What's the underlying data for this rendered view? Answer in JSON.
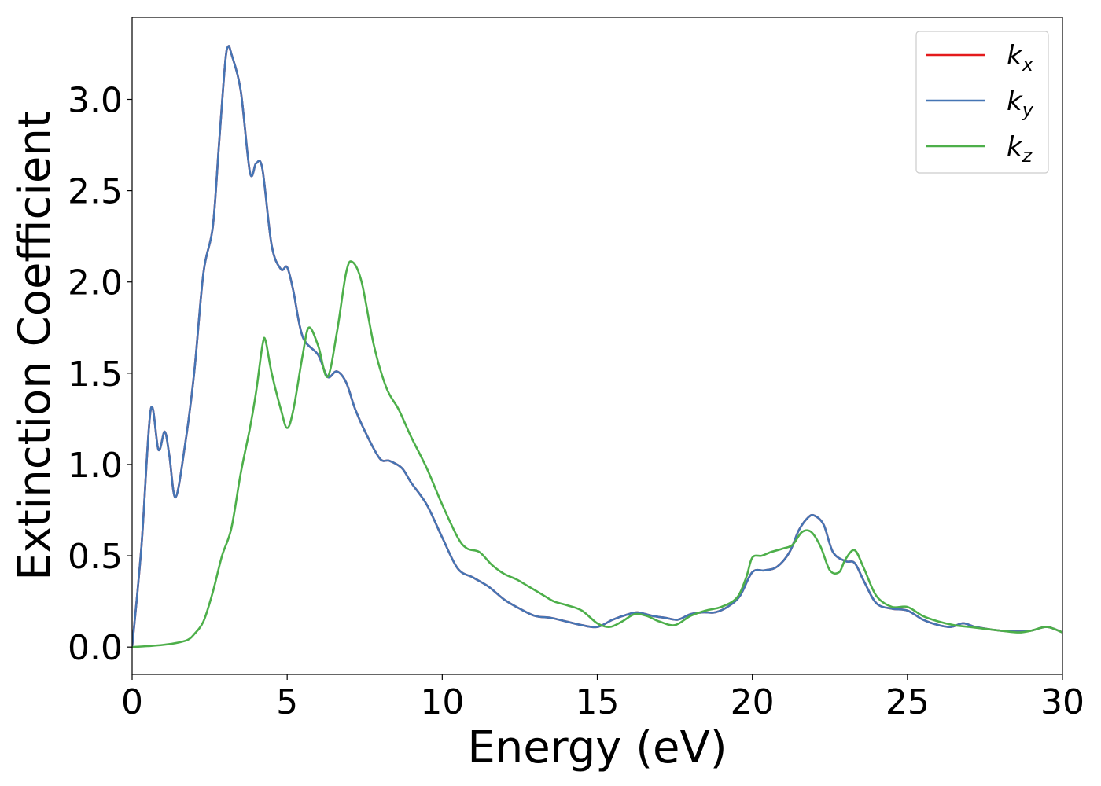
{
  "chart_data": {
    "type": "line",
    "xlabel": "Energy (eV)",
    "ylabel": "Extinction Coefficient",
    "xlim": [
      0,
      30
    ],
    "ylim": [
      -0.15,
      3.45
    ],
    "xticks": [
      0,
      5,
      10,
      15,
      20,
      25,
      30
    ],
    "xtick_labels": [
      "0",
      "5",
      "10",
      "15",
      "20",
      "25",
      "30"
    ],
    "yticks": [
      0.0,
      0.5,
      1.0,
      1.5,
      2.0,
      2.5,
      3.0
    ],
    "ytick_labels": [
      "0.0",
      "0.5",
      "1.0",
      "1.5",
      "2.0",
      "2.5",
      "3.0"
    ],
    "grid": false,
    "legend_position": "top-right",
    "series": [
      {
        "name": "k_x",
        "legend_base": "k",
        "legend_sub": "x",
        "color": "#e41a1c",
        "x": [
          0,
          0.3,
          0.6,
          0.85,
          1.05,
          1.2,
          1.4,
          1.7,
          2.0,
          2.3,
          2.6,
          2.8,
          3.0,
          3.1,
          3.2,
          3.5,
          3.8,
          4.0,
          4.2,
          4.5,
          4.8,
          5.0,
          5.2,
          5.5,
          6.0,
          6.3,
          6.6,
          6.9,
          7.2,
          7.6,
          8.0,
          8.3,
          8.7,
          9.0,
          9.5,
          10.0,
          10.5,
          11.0,
          11.5,
          12.0,
          12.5,
          13.0,
          13.5,
          14.0,
          14.5,
          15.0,
          15.5,
          16.0,
          16.3,
          16.8,
          17.2,
          17.6,
          18.0,
          18.4,
          18.8,
          19.2,
          19.6,
          20.0,
          20.4,
          20.8,
          21.2,
          21.5,
          21.8,
          22.0,
          22.3,
          22.6,
          23.0,
          23.3,
          23.6,
          24.0,
          24.5,
          25.0,
          25.5,
          26.0,
          26.4,
          26.8,
          27.2,
          28.0,
          28.6,
          29.0,
          29.5,
          30.0
        ],
        "y": [
          0.0,
          0.55,
          1.3,
          1.08,
          1.18,
          1.05,
          0.82,
          1.1,
          1.5,
          2.05,
          2.3,
          2.75,
          3.2,
          3.29,
          3.25,
          3.05,
          2.6,
          2.65,
          2.62,
          2.2,
          2.07,
          2.08,
          1.95,
          1.7,
          1.6,
          1.48,
          1.51,
          1.45,
          1.3,
          1.15,
          1.03,
          1.02,
          0.98,
          0.9,
          0.78,
          0.6,
          0.43,
          0.38,
          0.33,
          0.26,
          0.21,
          0.17,
          0.16,
          0.14,
          0.12,
          0.11,
          0.15,
          0.18,
          0.19,
          0.17,
          0.16,
          0.15,
          0.18,
          0.19,
          0.19,
          0.22,
          0.28,
          0.41,
          0.42,
          0.44,
          0.52,
          0.64,
          0.71,
          0.72,
          0.67,
          0.52,
          0.47,
          0.46,
          0.36,
          0.24,
          0.21,
          0.2,
          0.15,
          0.12,
          0.11,
          0.13,
          0.11,
          0.09,
          0.085,
          0.09,
          0.11,
          0.08
        ]
      },
      {
        "name": "k_y",
        "legend_base": "k",
        "legend_sub": "y",
        "color": "#4575b4",
        "x": [
          0,
          0.3,
          0.6,
          0.85,
          1.05,
          1.2,
          1.4,
          1.7,
          2.0,
          2.3,
          2.6,
          2.8,
          3.0,
          3.1,
          3.2,
          3.5,
          3.8,
          4.0,
          4.2,
          4.5,
          4.8,
          5.0,
          5.2,
          5.5,
          6.0,
          6.3,
          6.6,
          6.9,
          7.2,
          7.6,
          8.0,
          8.3,
          8.7,
          9.0,
          9.5,
          10.0,
          10.5,
          11.0,
          11.5,
          12.0,
          12.5,
          13.0,
          13.5,
          14.0,
          14.5,
          15.0,
          15.5,
          16.0,
          16.3,
          16.8,
          17.2,
          17.6,
          18.0,
          18.4,
          18.8,
          19.2,
          19.6,
          20.0,
          20.4,
          20.8,
          21.2,
          21.5,
          21.8,
          22.0,
          22.3,
          22.6,
          23.0,
          23.3,
          23.6,
          24.0,
          24.5,
          25.0,
          25.5,
          26.0,
          26.4,
          26.8,
          27.2,
          28.0,
          28.6,
          29.0,
          29.5,
          30.0
        ],
        "y": [
          0.0,
          0.55,
          1.3,
          1.08,
          1.18,
          1.05,
          0.82,
          1.1,
          1.5,
          2.05,
          2.3,
          2.75,
          3.2,
          3.29,
          3.25,
          3.05,
          2.6,
          2.65,
          2.62,
          2.2,
          2.07,
          2.08,
          1.95,
          1.7,
          1.6,
          1.48,
          1.51,
          1.45,
          1.3,
          1.15,
          1.03,
          1.02,
          0.98,
          0.9,
          0.78,
          0.6,
          0.43,
          0.38,
          0.33,
          0.26,
          0.21,
          0.17,
          0.16,
          0.14,
          0.12,
          0.11,
          0.15,
          0.18,
          0.19,
          0.17,
          0.16,
          0.15,
          0.18,
          0.19,
          0.19,
          0.22,
          0.28,
          0.41,
          0.42,
          0.44,
          0.52,
          0.64,
          0.71,
          0.72,
          0.67,
          0.52,
          0.47,
          0.46,
          0.36,
          0.24,
          0.21,
          0.2,
          0.15,
          0.12,
          0.11,
          0.13,
          0.11,
          0.09,
          0.085,
          0.09,
          0.11,
          0.08
        ]
      },
      {
        "name": "k_z",
        "legend_base": "k",
        "legend_sub": "z",
        "color": "#4daf4a",
        "x": [
          0,
          0.5,
          1.0,
          1.5,
          1.8,
          2.0,
          2.3,
          2.6,
          2.9,
          3.2,
          3.5,
          3.8,
          4.0,
          4.2,
          4.3,
          4.5,
          4.8,
          5.0,
          5.2,
          5.5,
          5.7,
          6.0,
          6.3,
          6.6,
          6.9,
          7.1,
          7.4,
          7.8,
          8.2,
          8.6,
          9.0,
          9.5,
          10.0,
          10.5,
          10.8,
          11.2,
          11.6,
          12.0,
          12.4,
          12.8,
          13.2,
          13.6,
          14.0,
          14.5,
          15.0,
          15.4,
          15.8,
          16.2,
          16.6,
          17.0,
          17.5,
          18.0,
          18.5,
          19.0,
          19.5,
          19.8,
          20.0,
          20.3,
          20.6,
          21.0,
          21.3,
          21.6,
          21.9,
          22.2,
          22.5,
          22.8,
          23.0,
          23.3,
          23.6,
          24.0,
          24.5,
          25.0,
          25.5,
          26.0,
          26.5,
          27.0,
          28.0,
          28.6,
          29.0,
          29.5,
          30.0
        ],
        "y": [
          0.0,
          0.005,
          0.012,
          0.025,
          0.04,
          0.07,
          0.14,
          0.3,
          0.5,
          0.65,
          0.95,
          1.2,
          1.4,
          1.65,
          1.68,
          1.5,
          1.3,
          1.2,
          1.3,
          1.6,
          1.75,
          1.65,
          1.48,
          1.72,
          2.05,
          2.11,
          2.0,
          1.65,
          1.42,
          1.3,
          1.15,
          0.98,
          0.78,
          0.6,
          0.54,
          0.52,
          0.45,
          0.4,
          0.37,
          0.33,
          0.29,
          0.25,
          0.23,
          0.2,
          0.13,
          0.11,
          0.14,
          0.18,
          0.17,
          0.14,
          0.12,
          0.17,
          0.2,
          0.22,
          0.27,
          0.38,
          0.49,
          0.5,
          0.52,
          0.54,
          0.56,
          0.63,
          0.63,
          0.55,
          0.42,
          0.41,
          0.48,
          0.53,
          0.43,
          0.28,
          0.22,
          0.22,
          0.17,
          0.14,
          0.12,
          0.11,
          0.09,
          0.08,
          0.09,
          0.11,
          0.08
        ]
      }
    ]
  }
}
